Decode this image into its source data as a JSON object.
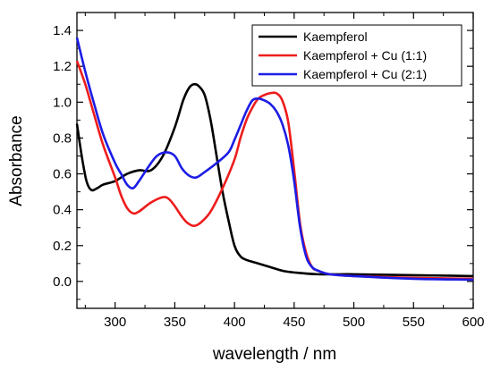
{
  "chart_data": {
    "type": "line",
    "xlabel": "wavelength / nm",
    "ylabel": "Absorbance",
    "xlim": [
      268,
      600
    ],
    "ylim": [
      -0.15,
      1.5
    ],
    "xticks": [
      300,
      350,
      400,
      450,
      500,
      550,
      600
    ],
    "yticks": [
      0.0,
      0.2,
      0.4,
      0.6,
      0.8,
      1.0,
      1.2,
      1.4
    ],
    "grid": false,
    "legend_position": "top-right",
    "series": [
      {
        "name": "Kaempferol",
        "color": "#000000",
        "points": [
          [
            268,
            0.88
          ],
          [
            272,
            0.7
          ],
          [
            276,
            0.56
          ],
          [
            280,
            0.51
          ],
          [
            285,
            0.52
          ],
          [
            290,
            0.54
          ],
          [
            300,
            0.56
          ],
          [
            310,
            0.6
          ],
          [
            320,
            0.62
          ],
          [
            330,
            0.62
          ],
          [
            340,
            0.7
          ],
          [
            350,
            0.86
          ],
          [
            357,
            1.01
          ],
          [
            362,
            1.08
          ],
          [
            366,
            1.1
          ],
          [
            370,
            1.09
          ],
          [
            375,
            1.04
          ],
          [
            380,
            0.9
          ],
          [
            385,
            0.7
          ],
          [
            390,
            0.5
          ],
          [
            395,
            0.34
          ],
          [
            400,
            0.2
          ],
          [
            405,
            0.14
          ],
          [
            410,
            0.12
          ],
          [
            420,
            0.1
          ],
          [
            430,
            0.08
          ],
          [
            440,
            0.06
          ],
          [
            450,
            0.05
          ],
          [
            470,
            0.04
          ],
          [
            500,
            0.04
          ],
          [
            550,
            0.035
          ],
          [
            600,
            0.03
          ]
        ]
      },
      {
        "name": "Kaempferol + Cu (1:1)",
        "color": "#ee1c1c",
        "points": [
          [
            268,
            1.23
          ],
          [
            275,
            1.1
          ],
          [
            282,
            0.94
          ],
          [
            290,
            0.76
          ],
          [
            300,
            0.58
          ],
          [
            305,
            0.48
          ],
          [
            310,
            0.41
          ],
          [
            315,
            0.38
          ],
          [
            320,
            0.39
          ],
          [
            330,
            0.44
          ],
          [
            340,
            0.47
          ],
          [
            345,
            0.46
          ],
          [
            350,
            0.42
          ],
          [
            355,
            0.37
          ],
          [
            360,
            0.33
          ],
          [
            366,
            0.31
          ],
          [
            372,
            0.33
          ],
          [
            380,
            0.39
          ],
          [
            390,
            0.52
          ],
          [
            400,
            0.68
          ],
          [
            405,
            0.8
          ],
          [
            410,
            0.9
          ],
          [
            415,
            0.97
          ],
          [
            420,
            1.02
          ],
          [
            425,
            1.04
          ],
          [
            430,
            1.05
          ],
          [
            435,
            1.05
          ],
          [
            440,
            1.01
          ],
          [
            445,
            0.89
          ],
          [
            450,
            0.62
          ],
          [
            455,
            0.32
          ],
          [
            460,
            0.16
          ],
          [
            465,
            0.08
          ],
          [
            470,
            0.06
          ],
          [
            480,
            0.04
          ],
          [
            500,
            0.03
          ],
          [
            550,
            0.02
          ],
          [
            600,
            0.015
          ]
        ]
      },
      {
        "name": "Kaempferol + Cu (2:1)",
        "color": "#1c1ce6",
        "points": [
          [
            268,
            1.36
          ],
          [
            275,
            1.17
          ],
          [
            282,
            1.0
          ],
          [
            290,
            0.82
          ],
          [
            300,
            0.66
          ],
          [
            305,
            0.6
          ],
          [
            310,
            0.54
          ],
          [
            315,
            0.52
          ],
          [
            320,
            0.56
          ],
          [
            328,
            0.64
          ],
          [
            335,
            0.7
          ],
          [
            343,
            0.72
          ],
          [
            350,
            0.7
          ],
          [
            356,
            0.63
          ],
          [
            362,
            0.59
          ],
          [
            368,
            0.58
          ],
          [
            375,
            0.61
          ],
          [
            385,
            0.66
          ],
          [
            395,
            0.72
          ],
          [
            400,
            0.79
          ],
          [
            405,
            0.87
          ],
          [
            410,
            0.95
          ],
          [
            415,
            1.01
          ],
          [
            420,
            1.02
          ],
          [
            425,
            1.01
          ],
          [
            430,
            0.99
          ],
          [
            435,
            0.95
          ],
          [
            440,
            0.88
          ],
          [
            445,
            0.76
          ],
          [
            450,
            0.56
          ],
          [
            455,
            0.3
          ],
          [
            460,
            0.14
          ],
          [
            465,
            0.08
          ],
          [
            470,
            0.06
          ],
          [
            480,
            0.04
          ],
          [
            500,
            0.03
          ],
          [
            550,
            0.015
          ],
          [
            600,
            0.01
          ]
        ]
      }
    ]
  }
}
